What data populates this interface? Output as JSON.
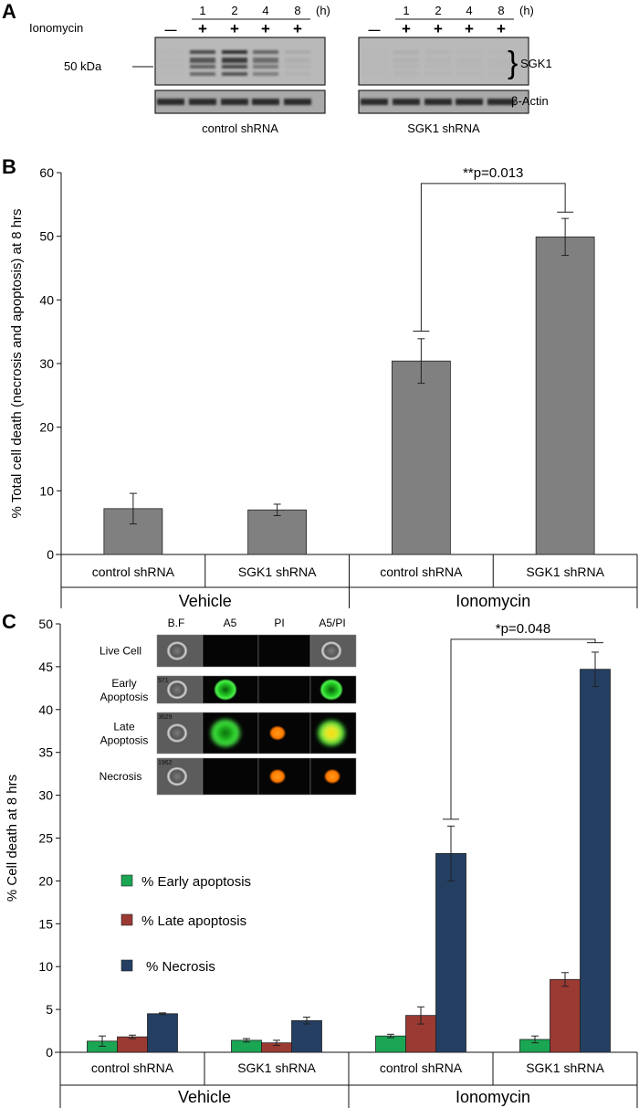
{
  "panel_a": {
    "letter": "A",
    "hours_label": "(h)",
    "time_points": [
      "1",
      "2",
      "4",
      "8"
    ],
    "treatment_label": "Ionomycin",
    "treatment_marks": [
      "—",
      "+",
      "+",
      "+",
      "+"
    ],
    "mw_marker": "50 kDa",
    "protein_label": "SGK1",
    "loading_label": "β-Actin",
    "blots": [
      {
        "caption": "control shRNA",
        "sgk1_intensity": [
          0.08,
          0.85,
          0.95,
          0.75,
          0.3
        ]
      },
      {
        "caption": "SGK1 shRNA",
        "sgk1_intensity": [
          0.05,
          0.25,
          0.18,
          0.15,
          0.12
        ]
      }
    ]
  },
  "chart_data": [
    {
      "panel": "B",
      "type": "bar",
      "ylabel": "% Total cell death (necrosis and apoptosis) at 8 hrs",
      "ylim": [
        0,
        60
      ],
      "yticks": [
        0,
        10,
        20,
        30,
        40,
        50,
        60
      ],
      "categories": [
        "control shRNA",
        "SGK1 shRNA",
        "control shRNA",
        "SGK1 shRNA"
      ],
      "groups": [
        {
          "label": "Vehicle",
          "span": [
            0,
            1
          ]
        },
        {
          "label": "Ionomycin",
          "span": [
            2,
            3
          ]
        }
      ],
      "series": [
        {
          "name": "Total cell death",
          "color": "#808080",
          "values": [
            7.2,
            7.0,
            30.4,
            49.9
          ],
          "errors": [
            2.4,
            0.9,
            3.5,
            2.9
          ]
        }
      ],
      "annotation": {
        "text": "**p=0.013",
        "from": 2,
        "to": 3,
        "level": 58.3,
        "left_drop": 35.1,
        "right_drop": 53.8
      }
    },
    {
      "panel": "C",
      "type": "bar",
      "ylabel": "% Cell death at 8 hrs",
      "ylim": [
        0,
        50
      ],
      "yticks": [
        0,
        5,
        10,
        15,
        20,
        25,
        30,
        35,
        40,
        45,
        50
      ],
      "categories": [
        "control shRNA",
        "SGK1 shRNA",
        "control shRNA",
        "SGK1 shRNA"
      ],
      "groups": [
        {
          "label": "Vehicle",
          "span": [
            0,
            1
          ]
        },
        {
          "label": "Ionomycin",
          "span": [
            2,
            3
          ]
        }
      ],
      "series": [
        {
          "name": "% Early apoptosis",
          "color": "#1aa653",
          "values": [
            1.3,
            1.4,
            1.9,
            1.5
          ],
          "errors": [
            0.6,
            0.2,
            0.2,
            0.4
          ]
        },
        {
          "name": "% Late apoptosis",
          "color": "#9b3a33",
          "values": [
            1.8,
            1.1,
            4.3,
            8.5
          ],
          "errors": [
            0.2,
            0.3,
            1.0,
            0.8
          ]
        },
        {
          "name": "% Necrosis",
          "color": "#243f62",
          "values": [
            4.5,
            3.7,
            23.2,
            44.7
          ],
          "errors": [
            0.1,
            0.4,
            3.2,
            2.0
          ]
        }
      ],
      "annotation": {
        "text": "*p=0.048",
        "from": 2,
        "to": 3,
        "level": 48.2,
        "left_drop": 27.2,
        "right_drop": 47.8
      }
    }
  ],
  "panel_b": {
    "letter": "B"
  },
  "panel_c": {
    "letter": "C",
    "inset": {
      "columns": [
        "B.F",
        "A5",
        "PI",
        "A5/PI"
      ],
      "rows": [
        {
          "label": "Live Cell",
          "id": ""
        },
        {
          "label": "Early Apoptosis",
          "id": "571"
        },
        {
          "label": "Late Apoptosis",
          "id": "3629"
        },
        {
          "label": "Necrosis",
          "id": "1962"
        }
      ]
    }
  }
}
